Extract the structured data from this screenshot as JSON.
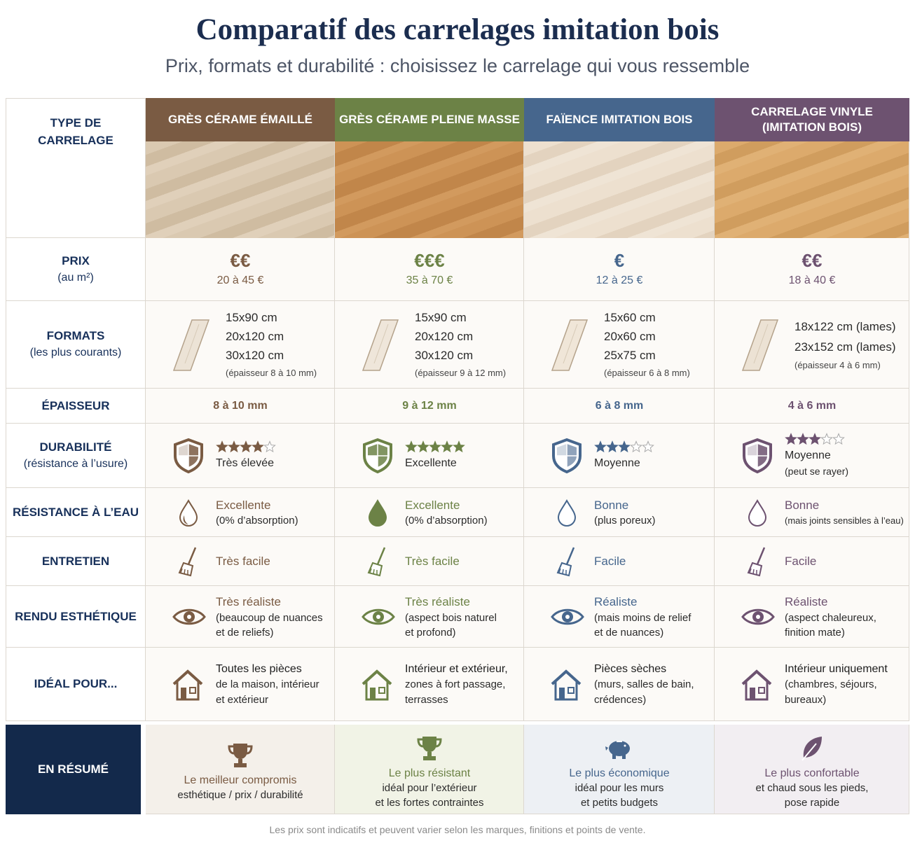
{
  "header": {
    "title": "Comparatif des carrelages imitation bois",
    "subtitle": "Prix, formats et durabilité : choisissez le carrelage qui vous ressemble"
  },
  "table": {
    "corner": "TYPE DE CARRELAGE",
    "columns": [
      {
        "name": [
          "GRÈS CÉRAME ÉMAILLÉ"
        ],
        "color": "#7a5b43"
      },
      {
        "name": [
          "GRÈS CÉRAME PLEINE MASSE"
        ],
        "color": "#6c8246"
      },
      {
        "name": [
          "FAÏENCE IMITATION BOIS"
        ],
        "color": "#46668d"
      },
      {
        "name": [
          "CARRELAGE VINYLE",
          "(IMITATION BOIS)"
        ],
        "color": "#6d5270"
      }
    ],
    "rows": {
      "price": {
        "label": [
          "PRIX",
          "(au m²)"
        ],
        "cells": [
          {
            "symbol": "€€",
            "range": "20 à 45 €"
          },
          {
            "symbol": "€€€",
            "range": "35 à 70 €"
          },
          {
            "symbol": "€",
            "range": "12 à 25 €"
          },
          {
            "symbol": "€€",
            "range": "18 à 40 €"
          }
        ]
      },
      "formats": {
        "label": [
          "FORMATS",
          "(les plus courants)"
        ],
        "cells": [
          {
            "sizes": [
              "15x90 cm",
              "20x120 cm",
              "30x120 cm"
            ],
            "note": "(épaisseur 8 à 10 mm)"
          },
          {
            "sizes": [
              "15x90 cm",
              "20x120 cm",
              "30x120 cm"
            ],
            "note": "(épaisseur 9 à 12 mm)"
          },
          {
            "sizes": [
              "15x60 cm",
              "20x60 cm",
              "25x75 cm"
            ],
            "note": "(épaisseur 6 à 8 mm)"
          },
          {
            "sizes": [
              "18x122 cm (lames)",
              "23x152 cm (lames)"
            ],
            "note": "(épaisseur 4 à 6 mm)"
          }
        ]
      },
      "thickness": {
        "label": [
          "ÉPAISSEUR"
        ],
        "cells": [
          "8 à 10 mm",
          "9 à 12 mm",
          "6 à 8 mm",
          "4 à 6 mm"
        ]
      },
      "durability": {
        "label": [
          "DURABILITÉ",
          "(résistance à l’usure)"
        ],
        "max": 5,
        "cells": [
          {
            "stars": 4,
            "text": [
              "Très élevée"
            ]
          },
          {
            "stars": 5,
            "text": [
              "Excellente"
            ]
          },
          {
            "stars": 3,
            "text": [
              "Moyenne"
            ]
          },
          {
            "stars": 3,
            "text": [
              "Moyenne",
              "(peut se rayer)"
            ]
          }
        ]
      },
      "water": {
        "label": [
          "RÉSISTANCE À L’EAU"
        ],
        "cells": [
          {
            "title": "Excellente",
            "note": "(0% d’absorption)"
          },
          {
            "title": "Excellente",
            "note": "(0% d’absorption)"
          },
          {
            "title": "Bonne",
            "note": "(plus poreux)"
          },
          {
            "title": "Bonne",
            "note": "(mais joints sensibles à l’eau)"
          }
        ]
      },
      "maintenance": {
        "label": [
          "ENTRETIEN"
        ],
        "cells": [
          "Très facile",
          "Très facile",
          "Facile",
          "Facile"
        ]
      },
      "look": {
        "label": [
          "RENDU ESTHÉTIQUE"
        ],
        "cells": [
          {
            "title": "Très réaliste",
            "note": [
              "(beaucoup de nuances",
              "et de reliefs)"
            ]
          },
          {
            "title": "Très réaliste",
            "note": [
              "(aspect bois naturel",
              "et profond)"
            ]
          },
          {
            "title": "Réaliste",
            "note": [
              "(mais moins de relief",
              "et de nuances)"
            ]
          },
          {
            "title": "Réaliste",
            "note": [
              "(aspect chaleureux,",
              "finition mate)"
            ]
          }
        ]
      },
      "ideal": {
        "label": [
          "IDÉAL POUR..."
        ],
        "cells": [
          [
            "Toutes les pièces",
            "de la maison, intérieur",
            "et extérieur"
          ],
          [
            "Intérieur et extérieur,",
            "zones à fort passage,",
            "terrasses"
          ],
          [
            "Pièces sèches",
            "(murs, salles de bain,",
            "crédences)"
          ],
          [
            "Intérieur uniquement",
            "(chambres, séjours,",
            "bureaux)"
          ]
        ]
      },
      "summary": {
        "label": [
          "EN RÉSUMÉ"
        ],
        "cells": [
          [
            "Le meilleur compromis",
            "esthétique / prix / durabilité"
          ],
          [
            "Le plus résistant",
            "idéal pour l’extérieur",
            "et les fortes contraintes"
          ],
          [
            "Le plus économique",
            "idéal pour les murs",
            "et petits budgets"
          ],
          [
            "Le plus confortable",
            "et chaud sous les pieds,",
            "pose rapide"
          ]
        ]
      }
    }
  },
  "footer": "Les prix sont indicatifs et peuvent varier selon les marques, finitions et points de vente."
}
